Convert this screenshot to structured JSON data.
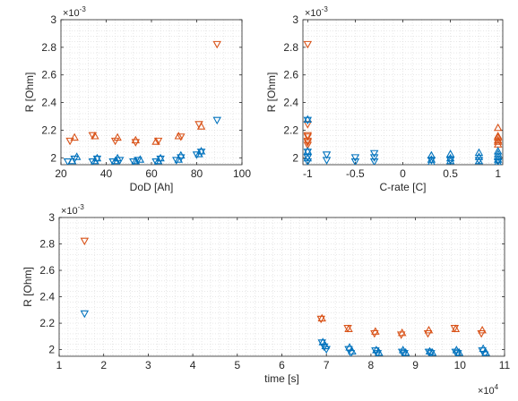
{
  "colors": {
    "orange": "#D95319",
    "blue": "#0072BD",
    "axis": "#262626",
    "grid": "#d9d9d9"
  },
  "chart_data": [
    {
      "type": "scatter",
      "xlabel": "DoD [Ah]",
      "ylabel": "R [Ohm]",
      "y_multiplier": "×10",
      "y_exponent": "-3",
      "xlim": [
        20,
        100
      ],
      "ylim": [
        1.95,
        3.0
      ],
      "xticks": [
        20,
        40,
        60,
        80,
        100
      ],
      "yticks": [
        2,
        2.2,
        2.4,
        2.6,
        2.8,
        3
      ],
      "xtick_labels": [
        "20",
        "40",
        "60",
        "80",
        "100"
      ],
      "ytick_labels": [
        "2",
        "2.2",
        "2.4",
        "2.6",
        "2.8",
        "3"
      ],
      "grid": true,
      "series": [
        {
          "color": "orange",
          "marker": "triangle-up",
          "x": [
            26,
            35,
            45,
            53,
            62,
            72,
            82
          ],
          "y": [
            2.15,
            2.16,
            2.15,
            2.13,
            2.12,
            2.16,
            2.23
          ]
        },
        {
          "color": "orange",
          "marker": "triangle-down",
          "x": [
            24,
            34,
            44,
            53,
            63,
            73,
            81,
            89
          ],
          "y": [
            2.12,
            2.16,
            2.12,
            2.11,
            2.12,
            2.15,
            2.24,
            2.82
          ]
        },
        {
          "color": "blue",
          "marker": "triangle-up",
          "x": [
            25,
            27,
            35,
            36,
            44,
            45,
            53,
            55,
            63,
            64,
            72,
            73,
            81,
            82
          ],
          "y": [
            1.98,
            2.01,
            1.98,
            2.0,
            1.98,
            2.0,
            1.98,
            1.99,
            1.98,
            2.0,
            1.99,
            2.02,
            2.03,
            2.05
          ]
        },
        {
          "color": "blue",
          "marker": "triangle-down",
          "x": [
            23,
            26,
            34,
            36,
            43,
            46,
            52,
            54,
            62,
            64,
            71,
            73,
            80,
            82,
            89
          ],
          "y": [
            1.97,
            1.99,
            1.97,
            1.99,
            1.97,
            1.98,
            1.97,
            1.98,
            1.97,
            1.99,
            1.98,
            2.0,
            2.02,
            2.04,
            2.27
          ]
        }
      ]
    },
    {
      "type": "scatter",
      "xlabel": "C-rate [C]",
      "ylabel": "R [Ohm]",
      "y_multiplier": "×10",
      "y_exponent": "-3",
      "xlim": [
        -1.05,
        1.05
      ],
      "ylim": [
        1.95,
        3.0
      ],
      "xticks": [
        -1,
        -0.5,
        0,
        0.5,
        1
      ],
      "yticks": [
        2,
        2.2,
        2.4,
        2.6,
        2.8,
        3
      ],
      "xtick_labels": [
        "-1",
        "-0.5",
        "0",
        "0.5",
        "1"
      ],
      "ytick_labels": [
        "2",
        "2.2",
        "2.4",
        "2.6",
        "2.8",
        "3"
      ],
      "grid": true,
      "series": [
        {
          "color": "orange",
          "marker": "triangle-up",
          "x": [
            1,
            1,
            1,
            1,
            1,
            1
          ],
          "y": [
            2.22,
            2.16,
            2.15,
            2.13,
            2.12,
            2.1
          ]
        },
        {
          "color": "orange",
          "marker": "triangle-down",
          "x": [
            -1,
            -1,
            -1,
            -1,
            -1,
            -1,
            -1
          ],
          "y": [
            2.82,
            2.24,
            2.16,
            2.15,
            2.12,
            2.11,
            2.09
          ]
        },
        {
          "color": "blue",
          "marker": "triangle-up",
          "x": [
            -1,
            -1,
            -1,
            0.3,
            0.3,
            0.3,
            0.5,
            0.5,
            0.5,
            0.8,
            0.8,
            0.8,
            1,
            1,
            1,
            1,
            1
          ],
          "y": [
            2.28,
            2.05,
            2.0,
            2.02,
            1.99,
            1.97,
            2.03,
            2.0,
            1.98,
            2.04,
            2.01,
            1.98,
            2.05,
            2.03,
            2.01,
            1.99,
            1.97
          ]
        },
        {
          "color": "blue",
          "marker": "triangle-down",
          "x": [
            -1,
            -1,
            -1,
            -1,
            -0.8,
            -0.8,
            -0.5,
            -0.5,
            -0.3,
            -0.3,
            -0.3,
            0.3,
            0.5,
            0.8,
            1
          ],
          "y": [
            2.27,
            2.04,
            2.0,
            1.97,
            2.02,
            1.98,
            2.0,
            1.97,
            2.03,
            2.0,
            1.97,
            1.98,
            1.98,
            1.98,
            1.97
          ]
        }
      ]
    },
    {
      "type": "scatter",
      "xlabel": "time [s]",
      "ylabel": "R [Ohm]",
      "y_multiplier": "×10",
      "y_exponent": "-3",
      "x_multiplier": "×10",
      "x_exponent": "4",
      "xlim": [
        1,
        11
      ],
      "ylim": [
        1.95,
        3.0
      ],
      "xticks": [
        1,
        2,
        3,
        4,
        5,
        6,
        7,
        8,
        9,
        10,
        11
      ],
      "yticks": [
        2,
        2.2,
        2.4,
        2.6,
        2.8,
        3
      ],
      "xtick_labels": [
        "1",
        "2",
        "3",
        "4",
        "5",
        "6",
        "7",
        "8",
        "9",
        "10",
        "11"
      ],
      "ytick_labels": [
        "2",
        "2.2",
        "2.4",
        "2.6",
        "2.8",
        "3"
      ],
      "grid": true,
      "series": [
        {
          "color": "orange",
          "marker": "triangle-up",
          "x": [
            6.9,
            7.5,
            8.1,
            8.7,
            9.3,
            9.9,
            10.5
          ],
          "y": [
            2.24,
            2.16,
            2.14,
            2.13,
            2.15,
            2.16,
            2.15
          ]
        },
        {
          "color": "orange",
          "marker": "triangle-down",
          "x": [
            1.57,
            6.88,
            7.48,
            8.08,
            8.68,
            9.28,
            9.88,
            10.48
          ],
          "y": [
            2.82,
            2.23,
            2.16,
            2.12,
            2.11,
            2.12,
            2.16,
            2.12
          ]
        },
        {
          "color": "blue",
          "marker": "triangle-up",
          "x": [
            6.92,
            6.98,
            7.52,
            7.58,
            8.12,
            8.18,
            8.72,
            8.78,
            9.32,
            9.38,
            9.92,
            9.98,
            10.52,
            10.58
          ],
          "y": [
            2.06,
            2.03,
            2.02,
            1.99,
            2.0,
            1.98,
            2.0,
            1.98,
            1.99,
            1.98,
            2.0,
            1.98,
            2.01,
            1.98
          ]
        },
        {
          "color": "blue",
          "marker": "triangle-down",
          "x": [
            1.57,
            6.9,
            6.95,
            7.0,
            7.5,
            7.55,
            8.1,
            8.15,
            8.7,
            8.75,
            9.3,
            9.35,
            9.9,
            9.95,
            10.5,
            10.55
          ],
          "y": [
            2.27,
            2.05,
            2.02,
            2.0,
            2.0,
            1.97,
            1.99,
            1.97,
            1.98,
            1.97,
            1.98,
            1.97,
            1.98,
            1.97,
            1.99,
            1.96
          ]
        }
      ]
    }
  ]
}
